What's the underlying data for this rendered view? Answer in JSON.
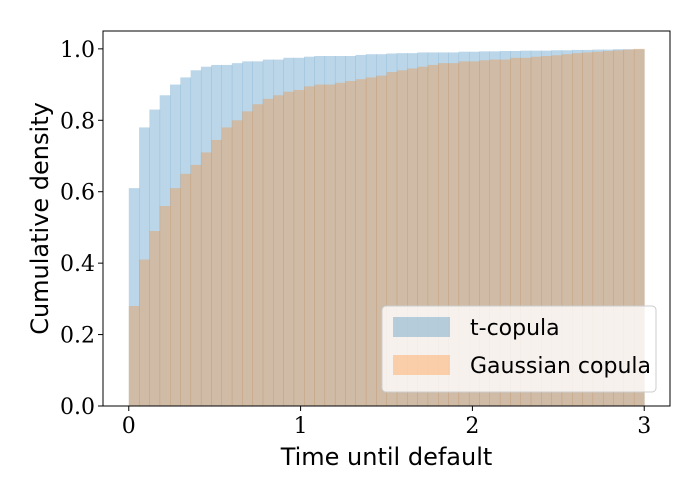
{
  "chart_data": {
    "type": "bar",
    "xlabel": "Time until default",
    "ylabel": "Cumulative density",
    "xlim": [
      -0.15,
      3.15
    ],
    "ylim": [
      0,
      1.05
    ],
    "xticks": [
      0,
      1,
      2,
      3
    ],
    "yticks": [
      0.0,
      0.2,
      0.4,
      0.6,
      0.8,
      1.0
    ],
    "xtick_labels": [
      "0",
      "1",
      "2",
      "3"
    ],
    "ytick_labels": [
      "0.0",
      "0.2",
      "0.4",
      "0.6",
      "0.8",
      "1.0"
    ],
    "bin_start": 0,
    "bin_width": 0.06,
    "grid": false,
    "legend_position": "bottom-right",
    "series": [
      {
        "name": "t-copula",
        "color": "#1f77b4",
        "opacity": 0.3,
        "values": [
          0.61,
          0.78,
          0.83,
          0.87,
          0.9,
          0.92,
          0.94,
          0.95,
          0.955,
          0.955,
          0.96,
          0.965,
          0.965,
          0.97,
          0.97,
          0.975,
          0.975,
          0.978,
          0.98,
          0.98,
          0.98,
          0.98,
          0.983,
          0.985,
          0.985,
          0.987,
          0.988,
          0.988,
          0.99,
          0.99,
          0.99,
          0.99,
          0.992,
          0.992,
          0.993,
          0.993,
          0.994,
          0.994,
          0.995,
          0.995,
          0.995,
          0.996,
          0.996,
          0.997,
          0.997,
          0.998,
          0.998,
          0.999,
          0.999,
          0.999
        ]
      },
      {
        "name": "Gaussian copula",
        "color": "#ff7f0e",
        "opacity": 0.3,
        "values": [
          0.28,
          0.41,
          0.49,
          0.56,
          0.61,
          0.65,
          0.675,
          0.71,
          0.745,
          0.78,
          0.8,
          0.825,
          0.845,
          0.86,
          0.87,
          0.88,
          0.885,
          0.895,
          0.9,
          0.9,
          0.905,
          0.91,
          0.915,
          0.92,
          0.925,
          0.935,
          0.94,
          0.945,
          0.95,
          0.955,
          0.96,
          0.96,
          0.965,
          0.965,
          0.968,
          0.97,
          0.97,
          0.975,
          0.975,
          0.978,
          0.98,
          0.982,
          0.985,
          0.988,
          0.99,
          0.992,
          0.994,
          0.996,
          0.998,
          1.0
        ]
      }
    ]
  }
}
